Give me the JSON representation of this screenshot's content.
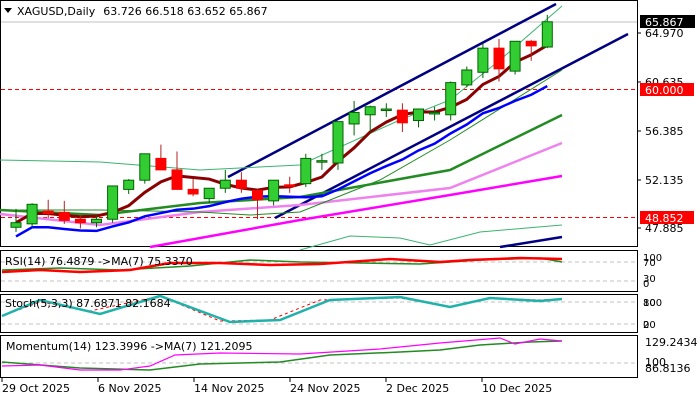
{
  "header": {
    "symbol": "XAGUSD,Daily",
    "ohlc": "63.726 66.518 63.652 65.867",
    "collapse_icon": "triangle-down-icon"
  },
  "colors": {
    "bull": "#32CD32",
    "bear": "#FF0000",
    "channel": "#000080",
    "ma_fast": "#8B0000",
    "ma_blue": "#0000FF",
    "ma_green": "#228B22",
    "ma_violet": "#EE82EE",
    "ma_magenta": "#FF00FF",
    "bollinger": "#3CB371",
    "level_line": "#FF0000",
    "price_tag_bg": "#000000",
    "level_tag_bg": "#FF0000",
    "stoch_main": "#20B2AA"
  },
  "price_axis": {
    "labels": [
      "64.970",
      "60.635",
      "56.385",
      "52.135",
      "47.885"
    ],
    "current_price": "65.867",
    "levels": [
      "60.000",
      "48.852"
    ]
  },
  "panels": {
    "rsi": {
      "label": "RSI(14) 76.4879  ->MA(7) 75.3370",
      "axis": [
        "100",
        "70",
        "30",
        "0"
      ]
    },
    "stoch": {
      "label": "Stoch(5,3,3) 87.6871 82.1684",
      "axis": [
        "100",
        "80",
        "20",
        "0"
      ]
    },
    "momentum": {
      "label": "Momentum(14) 123.3996  ->MA(7) 121.2095",
      "axis": [
        "129.2434",
        "100",
        "86.8136"
      ]
    }
  },
  "time_axis": {
    "labels": [
      "29 Oct 2025",
      "6 Nov 2025",
      "14 Nov 2025",
      "24 Nov 2025",
      "2 Dec 2025",
      "10 Dec 2025"
    ]
  },
  "chart_data": {
    "type": "candlestick",
    "title": "XAGUSD,Daily",
    "ylim": [
      45.5,
      67.2
    ],
    "y_ticks": [
      47.885,
      52.135,
      56.385,
      60.635,
      64.97
    ],
    "horizontal_levels": [
      60.0,
      48.852
    ],
    "x_tick_labels": [
      "29 Oct 2025",
      "6 Nov 2025",
      "14 Nov 2025",
      "24 Nov 2025",
      "2 Dec 2025",
      "10 Dec 2025"
    ],
    "candles": [
      {
        "o": 48.0,
        "h": 49.6,
        "l": 47.6,
        "c": 48.4
      },
      {
        "o": 48.3,
        "h": 50.1,
        "l": 48.0,
        "c": 50.0
      },
      {
        "o": 49.4,
        "h": 50.4,
        "l": 48.8,
        "c": 49.2
      },
      {
        "o": 49.3,
        "h": 50.3,
        "l": 48.3,
        "c": 48.6
      },
      {
        "o": 48.7,
        "h": 49.0,
        "l": 47.9,
        "c": 48.4
      },
      {
        "o": 48.4,
        "h": 49.0,
        "l": 48.0,
        "c": 48.7
      },
      {
        "o": 48.7,
        "h": 51.6,
        "l": 48.4,
        "c": 51.6
      },
      {
        "o": 51.3,
        "h": 52.2,
        "l": 50.9,
        "c": 52.1
      },
      {
        "o": 52.1,
        "h": 54.4,
        "l": 51.8,
        "c": 54.4
      },
      {
        "o": 54.0,
        "h": 55.2,
        "l": 53.7,
        "c": 53.0
      },
      {
        "o": 53.0,
        "h": 54.6,
        "l": 51.7,
        "c": 51.3
      },
      {
        "o": 51.3,
        "h": 52.2,
        "l": 50.7,
        "c": 50.9
      },
      {
        "o": 50.5,
        "h": 51.1,
        "l": 50.1,
        "c": 51.4
      },
      {
        "o": 51.4,
        "h": 53.0,
        "l": 51.0,
        "c": 52.1
      },
      {
        "o": 52.1,
        "h": 52.8,
        "l": 51.0,
        "c": 51.4
      },
      {
        "o": 51.2,
        "h": 51.3,
        "l": 48.7,
        "c": 50.4
      },
      {
        "o": 50.3,
        "h": 52.1,
        "l": 49.9,
        "c": 52.1
      },
      {
        "o": 51.7,
        "h": 52.4,
        "l": 51.0,
        "c": 51.6
      },
      {
        "o": 51.8,
        "h": 54.4,
        "l": 51.5,
        "c": 54.0
      },
      {
        "o": 53.8,
        "h": 54.4,
        "l": 53.0,
        "c": 53.8
      },
      {
        "o": 53.6,
        "h": 57.2,
        "l": 53.0,
        "c": 57.2
      },
      {
        "o": 57.0,
        "h": 59.0,
        "l": 56.0,
        "c": 58.0
      },
      {
        "o": 57.8,
        "h": 58.6,
        "l": 56.3,
        "c": 58.5
      },
      {
        "o": 58.3,
        "h": 58.8,
        "l": 57.6,
        "c": 58.3
      },
      {
        "o": 58.2,
        "h": 58.8,
        "l": 56.3,
        "c": 57.1
      },
      {
        "o": 57.3,
        "h": 58.1,
        "l": 56.7,
        "c": 58.3
      },
      {
        "o": 58.0,
        "h": 58.5,
        "l": 57.3,
        "c": 58.0
      },
      {
        "o": 57.8,
        "h": 60.7,
        "l": 57.3,
        "c": 60.6
      },
      {
        "o": 60.4,
        "h": 62.0,
        "l": 60.2,
        "c": 61.7
      },
      {
        "o": 61.5,
        "h": 64.0,
        "l": 61.0,
        "c": 63.6
      },
      {
        "o": 63.6,
        "h": 64.4,
        "l": 60.7,
        "c": 61.8
      },
      {
        "o": 61.6,
        "h": 64.0,
        "l": 61.3,
        "c": 64.2
      },
      {
        "o": 64.2,
        "h": 64.3,
        "l": 62.5,
        "c": 63.8
      },
      {
        "o": 63.7,
        "h": 66.5,
        "l": 63.6,
        "c": 65.9
      }
    ],
    "indicators": {
      "rsi": {
        "value": 76.4879,
        "ma7": 75.337,
        "levels": [
          70,
          30
        ]
      },
      "stochastic": {
        "k": 87.6871,
        "d": 82.1684,
        "levels": [
          80,
          20
        ]
      },
      "momentum": {
        "value": 123.3996,
        "ma7": 121.2095,
        "range": [
          86.8136,
          129.2434
        ],
        "level": 100
      }
    }
  }
}
